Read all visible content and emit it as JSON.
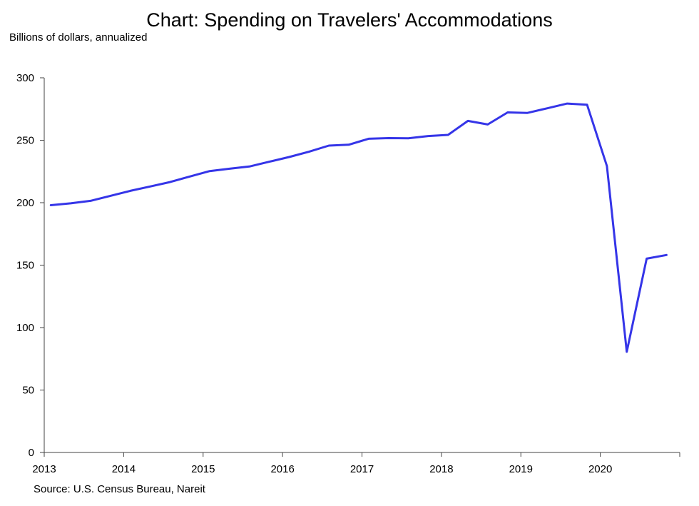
{
  "chart_data": {
    "type": "line",
    "title": "Chart: Spending on Travelers' Accommodations",
    "ylabel": "Billions of dollars, annualized",
    "xlabel": "",
    "source": "Source: U.S. Census Bureau, Nareit",
    "ylim": [
      0,
      300
    ],
    "yticks": [
      0,
      50,
      100,
      150,
      200,
      250,
      300
    ],
    "xticks": [
      "2013",
      "2014",
      "2015",
      "2016",
      "2017",
      "2018",
      "2019",
      "2020"
    ],
    "grid": false,
    "x_domain": [
      "2013-01",
      "2021-01"
    ],
    "color": "#3535e8",
    "series": [
      {
        "x": [
          "2013-02",
          "2013-05",
          "2013-08",
          "2013-11",
          "2014-02",
          "2014-05",
          "2014-08",
          "2014-11",
          "2015-02",
          "2015-05",
          "2015-08",
          "2015-11",
          "2016-02",
          "2016-05",
          "2016-08",
          "2016-11",
          "2017-02",
          "2017-05",
          "2017-08",
          "2017-11",
          "2018-02",
          "2018-05",
          "2018-08",
          "2018-11",
          "2019-02",
          "2019-05",
          "2019-08",
          "2019-11",
          "2020-02",
          "2020-05",
          "2020-08",
          "2020-11"
        ],
        "values": [
          198,
          199.5,
          201.5,
          205.5,
          209.5,
          213,
          216.5,
          221,
          225.3,
          227.2,
          229,
          232.8,
          236.6,
          240.8,
          245.7,
          246.4,
          251.2,
          251.7,
          251.6,
          253.4,
          254.3,
          265.5,
          262.6,
          272.3,
          271.9,
          275.6,
          279.4,
          278.4,
          229.3,
          80.6,
          155.2,
          158.1
        ]
      }
    ]
  }
}
